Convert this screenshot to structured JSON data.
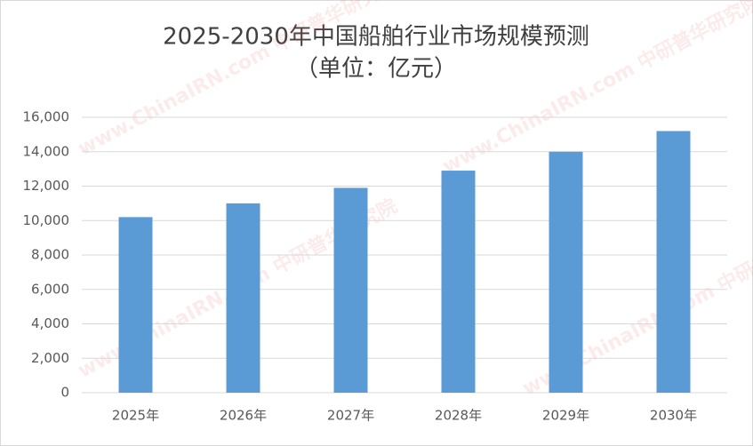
{
  "chart_data": {
    "type": "bar",
    "title": "2025-2030年中国船舶行业市场规模预测",
    "subtitle": "（单位：亿元）",
    "watermark": "www.ChinaIRN.com 中研普华研究院",
    "categories": [
      "2025年",
      "2026年",
      "2027年",
      "2028年",
      "2029年",
      "2030年"
    ],
    "values": [
      10200,
      11000,
      11900,
      12900,
      14000,
      15200
    ],
    "color": "#5b9bd5",
    "ylim": [
      0,
      16000
    ],
    "yticks": [
      0,
      {
        "value": 2000,
        "label": "2,000"
      },
      {
        "value": 4000,
        "label": "4,000"
      },
      {
        "value": 6000,
        "label": "6,000"
      },
      {
        "value": 8000,
        "label": "8,000"
      },
      {
        "value": 10000,
        "label": "10,000"
      },
      {
        "value": 12000,
        "label": "12,000"
      },
      {
        "value": 14000,
        "label": "14,000"
      },
      {
        "value": 16000,
        "label": "16,000"
      }
    ],
    "grid": true
  }
}
